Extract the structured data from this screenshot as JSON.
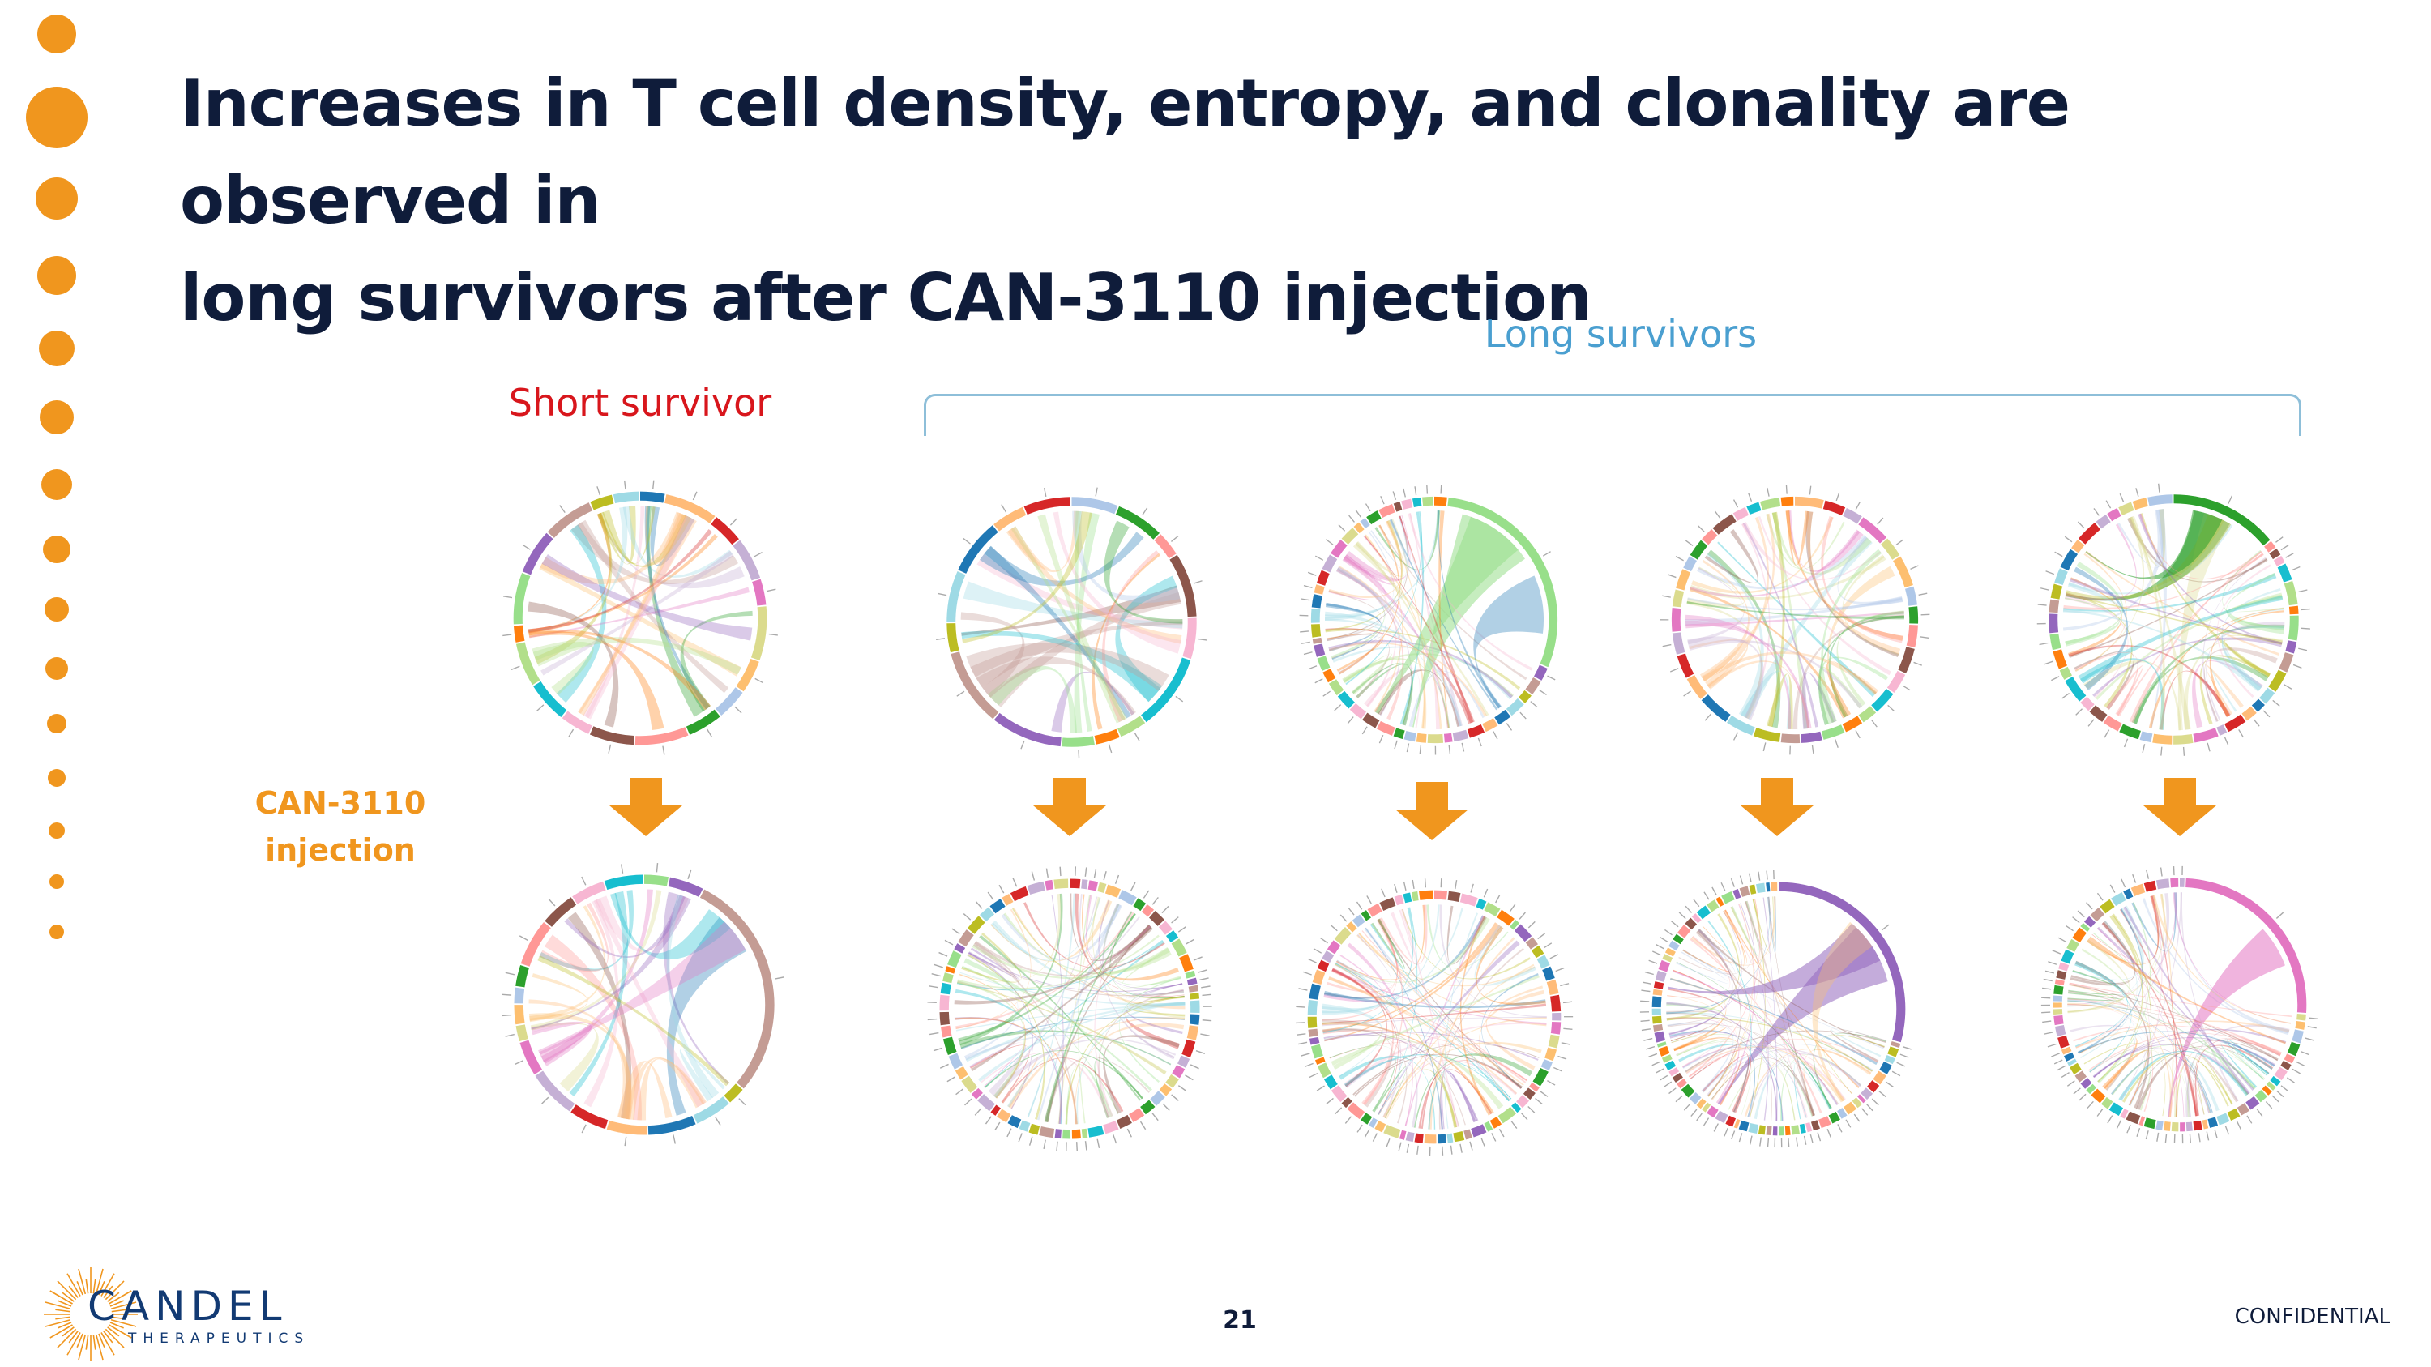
{
  "slide": {
    "title_line1": "Increases in T cell density, entropy, and clonality are observed in",
    "title_line2": "long survivors after CAN-3110 injection",
    "long_survivors_label": "Long survivors",
    "short_survivor_label": "Short survivor",
    "injection_label_line1": "CAN-3110",
    "injection_label_line2": "injection",
    "page_number": "21",
    "confidential": "CONFIDENTIAL"
  },
  "logo": {
    "name": "CANDEL",
    "subtitle": "THERAPEUTICS"
  },
  "colors": {
    "title": "#0f1c3a",
    "long_label": "#4a9fd0",
    "short_label": "#d8161c",
    "accent_orange": "#f0961e",
    "logo_blue": "#123a73"
  },
  "chord_diagrams": [
    {
      "patient": "short-survivor",
      "timepoint": "pre",
      "n_segments": 20,
      "dominant": []
    },
    {
      "patient": "long-survivor-1",
      "timepoint": "pre",
      "n_segments": 16,
      "dominant": []
    },
    {
      "patient": "long-survivor-2",
      "timepoint": "pre",
      "n_segments": 40,
      "dominant": [
        1
      ]
    },
    {
      "patient": "long-survivor-3",
      "timepoint": "pre",
      "n_segments": 34,
      "dominant": []
    },
    {
      "patient": "long-survivor-4",
      "timepoint": "pre",
      "n_segments": 40,
      "dominant": [
        0
      ]
    },
    {
      "patient": "short-survivor",
      "timepoint": "post",
      "n_segments": 18,
      "dominant": [
        2
      ]
    },
    {
      "patient": "long-survivor-1",
      "timepoint": "post",
      "n_segments": 64,
      "dominant": []
    },
    {
      "patient": "long-survivor-2",
      "timepoint": "post",
      "n_segments": 66,
      "dominant": []
    },
    {
      "patient": "long-survivor-3",
      "timepoint": "post",
      "n_segments": 66,
      "dominant": [
        0
      ]
    },
    {
      "patient": "long-survivor-4",
      "timepoint": "post",
      "n_segments": 62,
      "dominant": [
        1
      ]
    }
  ]
}
